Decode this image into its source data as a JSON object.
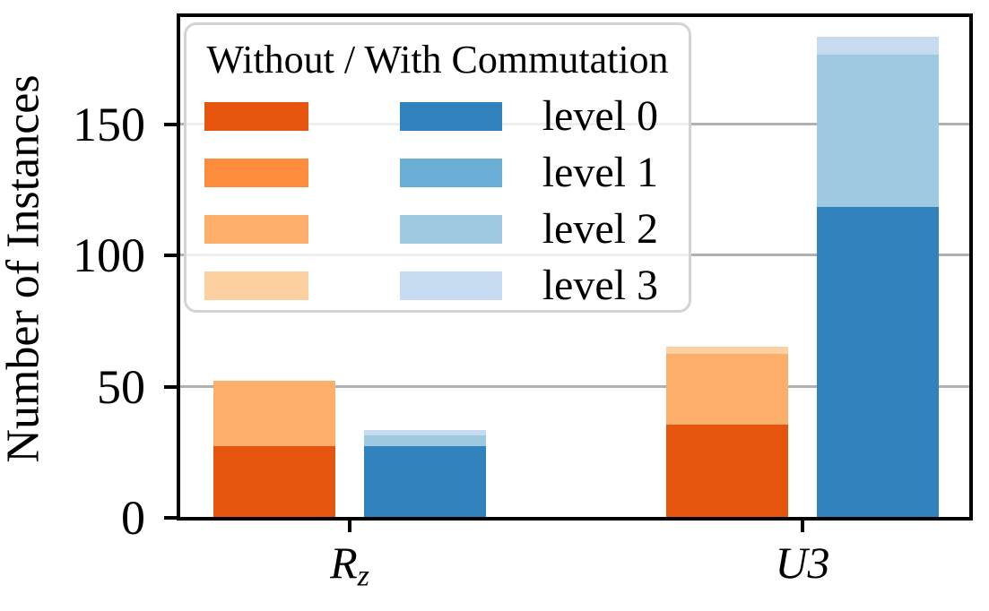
{
  "figure": {
    "ylabel": "Number of Instances",
    "background_color": "#ffffff",
    "frame_color": "#000000",
    "grid_color": "#b0b0b0",
    "text_color": "#000000"
  },
  "legend": {
    "title": "Without / With Commutation",
    "position": "upper left",
    "rows": [
      {
        "label": "level 0",
        "without_color": "#e6550d",
        "with_color": "#3182bd"
      },
      {
        "label": "level 1",
        "without_color": "#fd8d3c",
        "with_color": "#6baed6"
      },
      {
        "label": "level 2",
        "without_color": "#fdae6b",
        "with_color": "#9ecae1"
      },
      {
        "label": "level 3",
        "without_color": "#fdd0a2",
        "with_color": "#c6dbef"
      }
    ]
  },
  "chart_data": {
    "type": "bar",
    "title": "",
    "xlabel": "",
    "ylabel": "Number of Instances",
    "ylim": [
      0,
      192
    ],
    "yticks": [
      0,
      50,
      100,
      150
    ],
    "grid": "horizontal gridlines at 50, 100, 150 behind bars",
    "legend_position": "upper left",
    "categories": [
      "Rz",
      "U3"
    ],
    "structure": "For each gate category: left bar = without commutation (orange shades), right bar = with commutation (blue shades). Optimization-level bars are overlaid (lighter/higher level behind darker/lower level); visible stacked segments listed bottom-to-top.",
    "bars": [
      {
        "category": "Rz",
        "series": "without",
        "segments": [
          {
            "level": "level 0",
            "from": 0,
            "to": 27,
            "color": "#e6550d"
          },
          {
            "level": "level 2",
            "from": 27,
            "to": 52,
            "color": "#fdae6b"
          }
        ]
      },
      {
        "category": "Rz",
        "series": "with",
        "segments": [
          {
            "level": "level 0",
            "from": 0,
            "to": 27,
            "color": "#3182bd"
          },
          {
            "level": "level 2",
            "from": 27,
            "to": 31,
            "color": "#9ecae1"
          },
          {
            "level": "level 3",
            "from": 31,
            "to": 33,
            "color": "#c6dbef"
          }
        ]
      },
      {
        "category": "U3",
        "series": "without",
        "segments": [
          {
            "level": "level 0",
            "from": 0,
            "to": 35,
            "color": "#e6550d"
          },
          {
            "level": "level 2",
            "from": 35,
            "to": 62,
            "color": "#fdae6b"
          },
          {
            "level": "level 3",
            "from": 62,
            "to": 65,
            "color": "#fdd0a2"
          }
        ]
      },
      {
        "category": "U3",
        "series": "with",
        "segments": [
          {
            "level": "level 0",
            "from": 0,
            "to": 118,
            "color": "#3182bd"
          },
          {
            "level": "level 2",
            "from": 118,
            "to": 176,
            "color": "#9ecae1"
          },
          {
            "level": "level 3",
            "from": 176,
            "to": 183,
            "color": "#c6dbef"
          }
        ]
      }
    ],
    "xtick_labels": [
      {
        "parts": [
          {
            "text": "R",
            "italic": true
          },
          {
            "text": "z",
            "italic": true,
            "sub": true
          }
        ]
      },
      {
        "parts": [
          {
            "text": "U",
            "italic": true
          },
          {
            "text": "3",
            "italic": true
          }
        ]
      }
    ]
  }
}
